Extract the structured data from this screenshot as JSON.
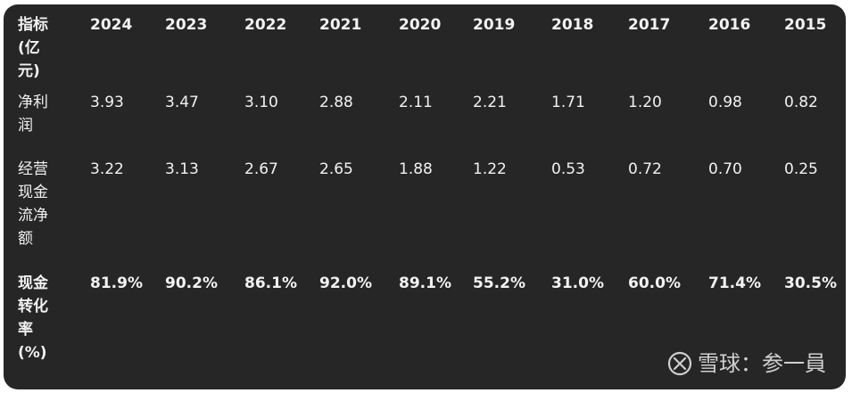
{
  "table": {
    "header": {
      "label": "指标(亿元)",
      "years": [
        "2024",
        "2023",
        "2022",
        "2021",
        "2020",
        "2019",
        "2018",
        "2017",
        "2016",
        "2015"
      ]
    },
    "rows": [
      {
        "label": "净利润",
        "values": [
          "3.93",
          "3.47",
          "3.10",
          "2.88",
          "2.11",
          "2.21",
          "1.71",
          "1.20",
          "0.98",
          "0.82"
        ]
      },
      {
        "label": "经营现金流净额",
        "values": [
          "3.22",
          "3.13",
          "2.67",
          "2.65",
          "1.88",
          "1.22",
          "0.53",
          "0.72",
          "0.70",
          "0.25"
        ]
      },
      {
        "label": "现金转化率(%)",
        "values": [
          "81.9%",
          "90.2%",
          "86.1%",
          "92.0%",
          "89.1%",
          "55.2%",
          "31.0%",
          "60.0%",
          "71.4%",
          "30.5%"
        ]
      }
    ]
  },
  "watermark": {
    "text": "雪球：参一員",
    "logo_icon": "xueqiu-logo-icon"
  }
}
